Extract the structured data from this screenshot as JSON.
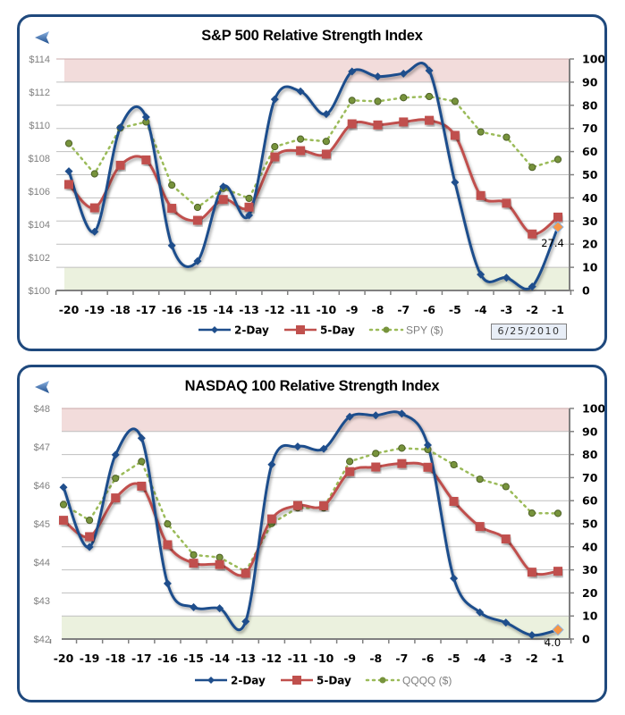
{
  "colors": {
    "two_day": "#1f4e8c",
    "five_day": "#c0504d",
    "price": "#9bbb59",
    "price_marker": "#4f6228",
    "last_point": "#f79646",
    "overbought_band": "#f2dcdb",
    "oversold_band": "#ebf1de",
    "grid": "#bfbfbf",
    "axis_label_left": "#808080",
    "frame": "#1f497d"
  },
  "icons": {
    "back": "back-arrow-icon"
  },
  "chart_data": [
    {
      "type": "line",
      "title": "S&P 500 Relative Strength Index",
      "categories": [
        "-20",
        "-19",
        "-18",
        "-17",
        "-16",
        "-15",
        "-14",
        "-13",
        "-12",
        "-11",
        "-10",
        "-9",
        "-8",
        "-7",
        "-6",
        "-5",
        "-4",
        "-3",
        "-2",
        "-1"
      ],
      "y_left": {
        "ticks": [
          "$100",
          "$102",
          "$104",
          "$106",
          "$108",
          "$110",
          "$112",
          "$114"
        ],
        "range": [
          100,
          114
        ]
      },
      "y_right": {
        "ticks": [
          "0",
          "10",
          "20",
          "30",
          "40",
          "50",
          "60",
          "70",
          "80",
          "90",
          "100"
        ],
        "range": [
          0,
          100
        ]
      },
      "bands": [
        {
          "name": "overbought",
          "range": [
            90,
            100
          ]
        },
        {
          "name": "oversold",
          "range": [
            0,
            10
          ]
        }
      ],
      "series": [
        {
          "name": "2-Day",
          "style": "smooth-line-diamond",
          "values": [
            51.5,
            25.4,
            70.4,
            74.9,
            19.4,
            12.7,
            44.9,
            32.5,
            82.6,
            86.0,
            76.2,
            94.6,
            92.4,
            93.7,
            95.0,
            46.7,
            6.9,
            5.5,
            1.7,
            27.4
          ]
        },
        {
          "name": "5-Day",
          "style": "smooth-line-square",
          "values": [
            45.8,
            35.7,
            54.1,
            56.4,
            35.5,
            30.3,
            39.3,
            36.0,
            57.7,
            60.4,
            58.9,
            72.0,
            71.5,
            72.8,
            73.5,
            67.0,
            41.0,
            37.7,
            24.4,
            31.7
          ]
        },
        {
          "name": "SPY ($)",
          "style": "dotted-circle",
          "values": [
            63.5,
            50.4,
            70.2,
            72.8,
            45.5,
            35.9,
            44.1,
            39.8,
            62.1,
            65.4,
            64.4,
            82.1,
            81.7,
            83.3,
            83.8,
            81.7,
            68.5,
            66.2,
            53.2,
            56.6
          ]
        }
      ],
      "last_value_label": "27.4",
      "legend": [
        "2-Day",
        "5-Day",
        "SPY ($)"
      ],
      "legend_position": "bottom",
      "date": "6/25/2010",
      "grid": true
    },
    {
      "type": "line",
      "title": "NASDAQ 100 Relative Strength Index",
      "categories": [
        "-20",
        "-19",
        "-18",
        "-17",
        "-16",
        "-15",
        "-14",
        "-13",
        "-12",
        "-11",
        "-10",
        "-9",
        "-8",
        "-7",
        "-6",
        "-5",
        "-4",
        "-3",
        "-2",
        "-1"
      ],
      "y_left": {
        "ticks": [
          "$42",
          "$43",
          "$44",
          "$45",
          "$46",
          "$47",
          "$48"
        ],
        "range": [
          42,
          48
        ]
      },
      "y_right": {
        "ticks": [
          "0",
          "10",
          "20",
          "30",
          "40",
          "50",
          "60",
          "70",
          "80",
          "90",
          "100"
        ],
        "range": [
          0,
          100
        ]
      },
      "bands": [
        {
          "name": "overbought",
          "range": [
            90,
            100
          ]
        },
        {
          "name": "oversold",
          "range": [
            0,
            10
          ]
        }
      ],
      "series": [
        {
          "name": "2-Day",
          "style": "smooth-line-diamond",
          "values": [
            65.8,
            39.9,
            79.9,
            87.1,
            24.1,
            13.8,
            13.3,
            7.6,
            75.7,
            83.5,
            82.5,
            96.4,
            97.0,
            97.7,
            84.1,
            26.3,
            11.6,
            7.1,
            1.7,
            4.0
          ]
        },
        {
          "name": "5-Day",
          "style": "smooth-line-square",
          "values": [
            51.5,
            44.4,
            61.2,
            66.3,
            40.9,
            32.9,
            32.3,
            28.5,
            52.1,
            57.9,
            57.8,
            72.6,
            74.6,
            76.1,
            74.5,
            59.7,
            48.8,
            43.4,
            29.0,
            29.4
          ]
        },
        {
          "name": "QQQQ ($)",
          "style": "dotted-circle",
          "values": [
            58.3,
            51.5,
            69.7,
            77.0,
            49.9,
            36.5,
            35.4,
            29.2,
            50.1,
            56.9,
            56.9,
            77.0,
            80.5,
            82.8,
            82.2,
            75.6,
            69.3,
            66.1,
            54.6,
            54.5
          ]
        }
      ],
      "last_value_label": "4.0",
      "legend": [
        "2-Day",
        "5-Day",
        "QQQQ ($)"
      ],
      "legend_position": "bottom",
      "grid": true
    }
  ]
}
